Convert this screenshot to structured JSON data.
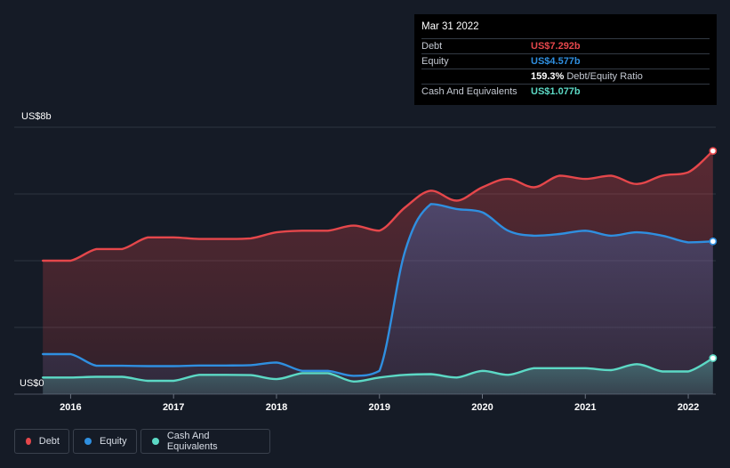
{
  "colors": {
    "debt": "#e5474b",
    "equity": "#2f8fe0",
    "cash": "#5cd9c5",
    "grid": "#2d3440",
    "background": "#151b26"
  },
  "tooltip": {
    "date": "Mar 31 2022",
    "rows": [
      {
        "label": "Debt",
        "value": "US$7.292b",
        "color": "#e5474b",
        "suffix": ""
      },
      {
        "label": "Equity",
        "value": "US$4.577b",
        "color": "#2f8fe0",
        "suffix": ""
      },
      {
        "label": "",
        "value": "159.3%",
        "color": "#ffffff",
        "suffix": "Debt/Equity Ratio"
      },
      {
        "label": "Cash And Equivalents",
        "value": "US$1.077b",
        "color": "#5cd9c5",
        "suffix": ""
      }
    ]
  },
  "legend": [
    {
      "label": "Debt",
      "color": "#e5474b"
    },
    {
      "label": "Equity",
      "color": "#2f8fe0"
    },
    {
      "label": "Cash And Equivalents",
      "color": "#5cd9c5"
    }
  ],
  "chart_data": {
    "type": "area",
    "ylim": [
      0,
      8
    ],
    "xlim": [
      2015.72,
      2022.25
    ],
    "ytick_labels": {
      "top": "US$8b",
      "bottom": "US$0"
    },
    "grid_values": [
      2,
      4,
      6,
      8
    ],
    "x_ticks": [
      {
        "value": 2016,
        "label": "2016"
      },
      {
        "value": 2017,
        "label": "2017"
      },
      {
        "value": 2018,
        "label": "2018"
      },
      {
        "value": 2019,
        "label": "2019"
      },
      {
        "value": 2020,
        "label": "2020"
      },
      {
        "value": 2021,
        "label": "2021"
      },
      {
        "value": 2022,
        "label": "2022"
      }
    ],
    "series": [
      {
        "name": "Debt",
        "key": "debt",
        "points": [
          [
            2015.73,
            4.0
          ],
          [
            2016.0,
            4.0
          ],
          [
            2016.25,
            4.35
          ],
          [
            2016.5,
            4.35
          ],
          [
            2016.75,
            4.7
          ],
          [
            2017.0,
            4.7
          ],
          [
            2017.25,
            4.65
          ],
          [
            2017.5,
            4.65
          ],
          [
            2017.75,
            4.67
          ],
          [
            2018.0,
            4.85
          ],
          [
            2018.25,
            4.9
          ],
          [
            2018.5,
            4.9
          ],
          [
            2018.75,
            5.05
          ],
          [
            2019.0,
            4.9
          ],
          [
            2019.25,
            5.6
          ],
          [
            2019.5,
            6.1
          ],
          [
            2019.75,
            5.8
          ],
          [
            2020.0,
            6.2
          ],
          [
            2020.25,
            6.45
          ],
          [
            2020.5,
            6.2
          ],
          [
            2020.75,
            6.55
          ],
          [
            2021.0,
            6.45
          ],
          [
            2021.25,
            6.55
          ],
          [
            2021.5,
            6.3
          ],
          [
            2021.75,
            6.55
          ],
          [
            2022.0,
            6.65
          ],
          [
            2022.24,
            7.29
          ]
        ]
      },
      {
        "name": "Equity",
        "key": "equity",
        "points": [
          [
            2015.73,
            1.2
          ],
          [
            2016.0,
            1.2
          ],
          [
            2016.25,
            0.85
          ],
          [
            2016.5,
            0.85
          ],
          [
            2016.75,
            0.84
          ],
          [
            2017.0,
            0.84
          ],
          [
            2017.25,
            0.86
          ],
          [
            2017.5,
            0.86
          ],
          [
            2017.75,
            0.87
          ],
          [
            2018.0,
            0.95
          ],
          [
            2018.25,
            0.7
          ],
          [
            2018.5,
            0.7
          ],
          [
            2018.75,
            0.55
          ],
          [
            2019.0,
            0.7
          ],
          [
            2019.25,
            4.3
          ],
          [
            2019.5,
            5.7
          ],
          [
            2019.75,
            5.55
          ],
          [
            2020.0,
            5.45
          ],
          [
            2020.25,
            4.9
          ],
          [
            2020.5,
            4.75
          ],
          [
            2020.75,
            4.8
          ],
          [
            2021.0,
            4.9
          ],
          [
            2021.25,
            4.75
          ],
          [
            2021.5,
            4.85
          ],
          [
            2021.75,
            4.75
          ],
          [
            2022.0,
            4.55
          ],
          [
            2022.24,
            4.58
          ]
        ]
      },
      {
        "name": "Cash And Equivalents",
        "key": "cash",
        "points": [
          [
            2015.73,
            0.5
          ],
          [
            2016.0,
            0.5
          ],
          [
            2016.25,
            0.52
          ],
          [
            2016.5,
            0.52
          ],
          [
            2016.75,
            0.4
          ],
          [
            2017.0,
            0.4
          ],
          [
            2017.25,
            0.58
          ],
          [
            2017.5,
            0.58
          ],
          [
            2017.75,
            0.57
          ],
          [
            2018.0,
            0.45
          ],
          [
            2018.25,
            0.63
          ],
          [
            2018.5,
            0.63
          ],
          [
            2018.75,
            0.38
          ],
          [
            2019.0,
            0.5
          ],
          [
            2019.25,
            0.58
          ],
          [
            2019.5,
            0.6
          ],
          [
            2019.75,
            0.5
          ],
          [
            2020.0,
            0.7
          ],
          [
            2020.25,
            0.58
          ],
          [
            2020.5,
            0.78
          ],
          [
            2020.75,
            0.78
          ],
          [
            2021.0,
            0.78
          ],
          [
            2021.25,
            0.72
          ],
          [
            2021.5,
            0.9
          ],
          [
            2021.75,
            0.68
          ],
          [
            2022.0,
            0.68
          ],
          [
            2022.24,
            1.08
          ]
        ]
      }
    ]
  }
}
